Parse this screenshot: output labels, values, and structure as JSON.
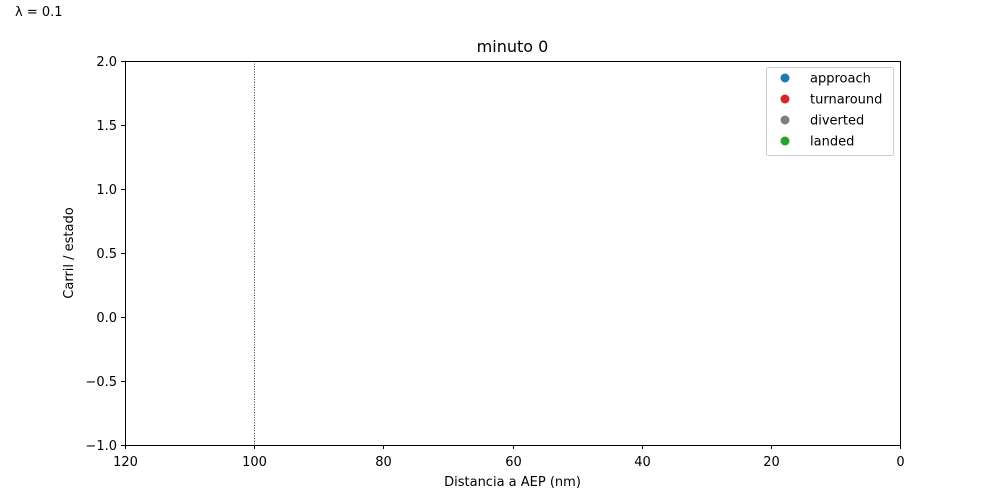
{
  "corner_label": "λ = 0.1",
  "chart_data": {
    "type": "scatter",
    "title": "minuto 0",
    "xlabel": "Distancia a AEP (nm)",
    "ylabel": "Carril / estado",
    "xlim": [
      120,
      0
    ],
    "ylim": [
      -1.0,
      2.0
    ],
    "x_ticks": [
      120,
      100,
      80,
      60,
      40,
      20,
      0
    ],
    "x_tick_labels": [
      "120",
      "100",
      "80",
      "60",
      "40",
      "20",
      "0"
    ],
    "y_ticks": [
      2.0,
      1.5,
      1.0,
      0.5,
      0.0,
      -0.5,
      -1.0
    ],
    "y_tick_labels": [
      "2.0",
      "1.5",
      "1.0",
      "0.5",
      "0.0",
      "−0.5",
      "−1.0"
    ],
    "reference_line_x": 100,
    "grid": false,
    "legend_position": "top-right",
    "series": [
      {
        "name": "approach",
        "color": "#1f77b4",
        "points": []
      },
      {
        "name": "turnaround",
        "color": "#d62728",
        "points": []
      },
      {
        "name": "diverted",
        "color": "#7f7f7f",
        "points": []
      },
      {
        "name": "landed",
        "color": "#2ca02c",
        "points": []
      }
    ]
  }
}
